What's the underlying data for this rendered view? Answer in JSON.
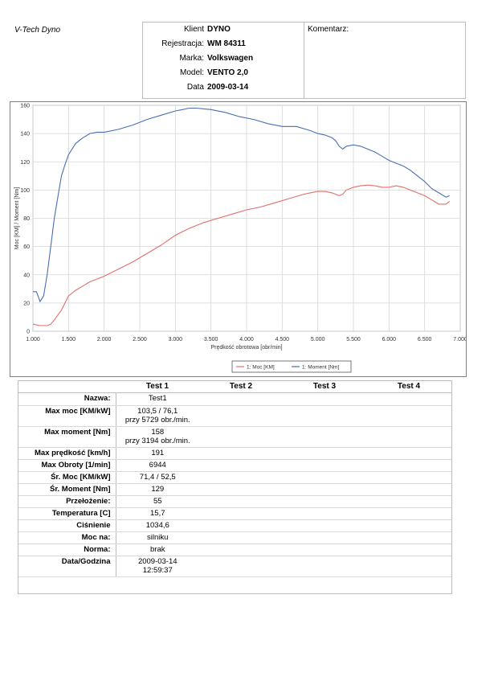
{
  "brand": "V-Tech Dyno",
  "header": {
    "rows": [
      {
        "label": "Klient",
        "value": "DYNO"
      },
      {
        "label": "Rejestracja:",
        "value": "WM 84311"
      },
      {
        "label": "Marka:",
        "value": "Volkswagen"
      },
      {
        "label": "Model:",
        "value": "VENTO 2,0"
      },
      {
        "label": "Data",
        "value": "2009-03-14"
      }
    ],
    "komentarz_label": "Komentarz:"
  },
  "chart_data": {
    "type": "line",
    "title": "",
    "xlabel": "Prędkość obrotowa [obr/min]",
    "ylabel": "Moc [KM] / Moment [Nm]",
    "xlim": [
      1000,
      7000
    ],
    "ylim": [
      0,
      160
    ],
    "x_ticks": [
      1000,
      1500,
      2000,
      2500,
      3000,
      3500,
      4000,
      4500,
      5000,
      5500,
      6000,
      6500,
      7000
    ],
    "x_tick_labels": [
      "1.000",
      "1.500",
      "2.000",
      "2.500",
      "3.000",
      "3.500",
      "4.000",
      "4.500",
      "5.000",
      "5.500",
      "6.000",
      "6.500",
      "7.000"
    ],
    "y_ticks": [
      0,
      20,
      40,
      60,
      80,
      100,
      120,
      140,
      160
    ],
    "grid": true,
    "legend_position": "bottom-right",
    "colors": {
      "moc": "#e0706a",
      "moment": "#4a6fb0"
    },
    "series": [
      {
        "name": "1: Moc [KM]",
        "x": [
          1000,
          1100,
          1200,
          1250,
          1300,
          1400,
          1500,
          1600,
          1700,
          1800,
          1900,
          2000,
          2200,
          2400,
          2600,
          2800,
          3000,
          3200,
          3400,
          3600,
          3800,
          4000,
          4200,
          4400,
          4600,
          4800,
          5000,
          5100,
          5200,
          5300,
          5350,
          5400,
          5500,
          5600,
          5700,
          5800,
          5900,
          6000,
          6100,
          6200,
          6300,
          6400,
          6500,
          6600,
          6700,
          6800,
          6850
        ],
        "values": [
          5,
          4,
          4,
          5,
          8,
          15,
          25,
          29,
          32,
          35,
          37,
          39,
          44,
          49,
          55,
          61,
          68,
          73,
          77,
          80,
          83,
          86,
          88,
          91,
          94,
          97,
          99,
          99,
          98,
          96,
          97,
          100,
          102,
          103,
          103.5,
          103,
          102,
          102,
          103,
          102,
          100,
          98,
          96,
          93,
          90,
          90,
          92
        ]
      },
      {
        "name": "1: Moment [Nm]",
        "x": [
          1000,
          1050,
          1100,
          1150,
          1200,
          1250,
          1300,
          1350,
          1400,
          1450,
          1500,
          1600,
          1700,
          1800,
          1900,
          2000,
          2200,
          2400,
          2600,
          2800,
          3000,
          3100,
          3194,
          3300,
          3500,
          3700,
          3900,
          4100,
          4300,
          4500,
          4700,
          4900,
          5000,
          5100,
          5200,
          5250,
          5300,
          5350,
          5400,
          5500,
          5600,
          5700,
          5800,
          5900,
          6000,
          6100,
          6200,
          6300,
          6400,
          6500,
          6600,
          6700,
          6800,
          6850
        ],
        "values": [
          28,
          28,
          21,
          25,
          40,
          60,
          80,
          95,
          110,
          118,
          125,
          133,
          137,
          140,
          141,
          141,
          143,
          146,
          150,
          153,
          156,
          157,
          158,
          158,
          157,
          155,
          152,
          150,
          147,
          145,
          145,
          142,
          140,
          139,
          137,
          135,
          131,
          129,
          131,
          132,
          131,
          129,
          127,
          124,
          121,
          119,
          117,
          114,
          110,
          106,
          101,
          98,
          95,
          96
        ]
      }
    ]
  },
  "table": {
    "headers": [
      "Test 1",
      "Test 2",
      "Test 3",
      "Test 4"
    ],
    "rows": [
      {
        "label": "Nazwa:",
        "v1": "Test1",
        "v1b": ""
      },
      {
        "label": "Max moc [KM/kW]",
        "v1": "103,5 / 76,1",
        "v1b": "przy 5729 obr./min."
      },
      {
        "label": "Max moment [Nm]",
        "v1": "158",
        "v1b": "przy 3194 obr./min."
      },
      {
        "label": "Max prędkość [km/h]",
        "v1": "191",
        "v1b": ""
      },
      {
        "label": "Max Obroty [1/min]",
        "v1": "6944",
        "v1b": ""
      },
      {
        "label": "Śr. Moc [KM/kW]",
        "v1": "71,4 / 52,5",
        "v1b": ""
      },
      {
        "label": "Śr. Moment [Nm]",
        "v1": "129",
        "v1b": ""
      },
      {
        "label": "Przełożenie:",
        "v1": "55",
        "v1b": ""
      },
      {
        "label": "Temperatura [C]",
        "v1": "15,7",
        "v1b": ""
      },
      {
        "label": "Ciśnienie",
        "v1": "1034,6",
        "v1b": ""
      },
      {
        "label": "Moc na:",
        "v1": "silniku",
        "v1b": ""
      },
      {
        "label": "Norma:",
        "v1": "brak",
        "v1b": ""
      },
      {
        "label": "Data/Godzina",
        "v1": "2009-03-14",
        "v1b": "12:59:37"
      }
    ]
  }
}
